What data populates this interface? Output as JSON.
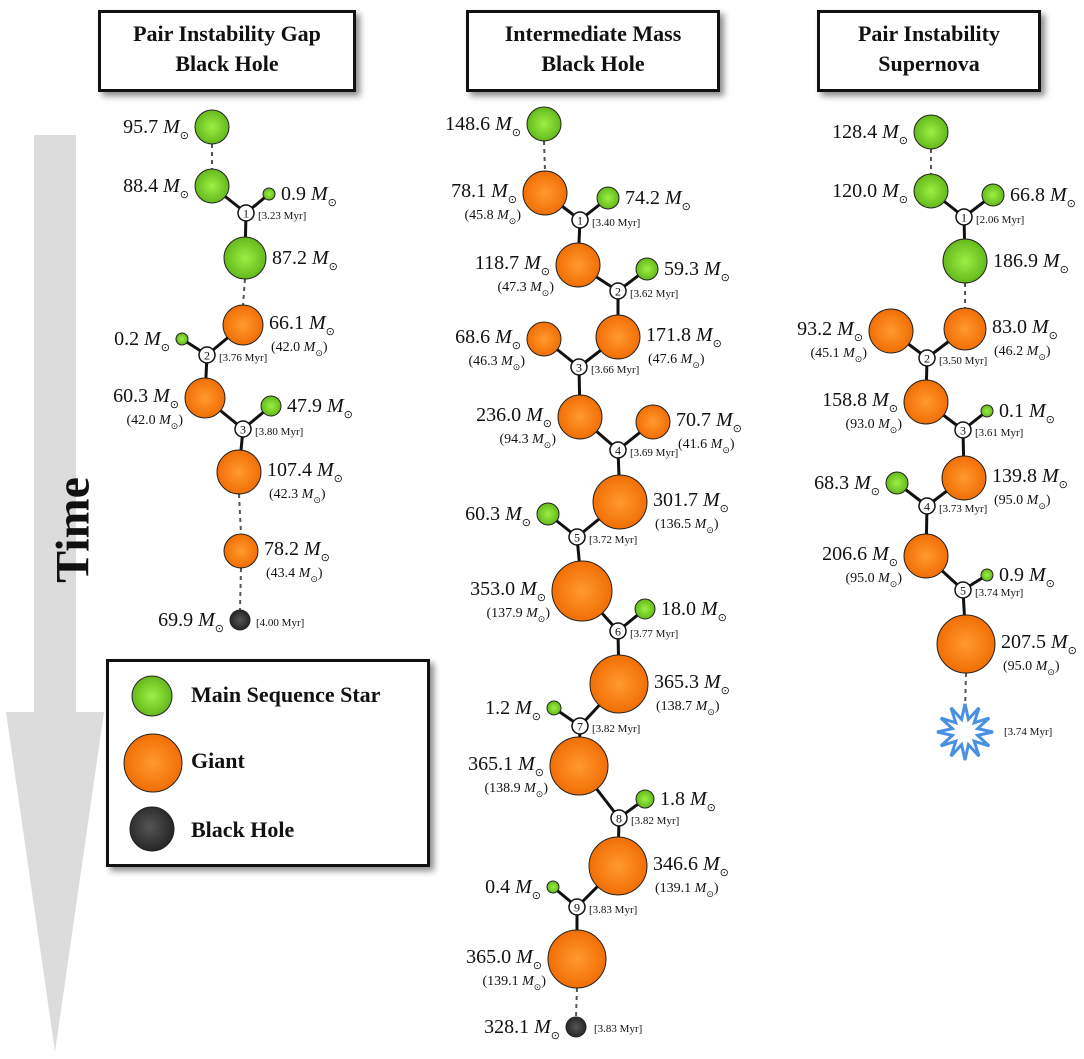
{
  "titles": {
    "pigbh": "Pair Instability Gap\nBlack Hole",
    "imbh": "Intermediate Mass\nBlack Hole",
    "pisn": "Pair Instability\nSupernova"
  },
  "time_label": "Time",
  "legend": [
    {
      "kind": "ms",
      "label": "Main Sequence Star"
    },
    {
      "kind": "giant",
      "label": "Giant"
    },
    {
      "kind": "bh",
      "label": "Black Hole"
    }
  ],
  "colors": {
    "main_sequence": "#7ED321",
    "giant": "#FF7A00",
    "black_hole": "#333333",
    "supernova": "#4A90E2",
    "arrow": "#DCDCDC"
  },
  "columns": [
    {
      "name": "Pair Instability Gap Black Hole",
      "nodes": [
        {
          "type": "ms",
          "mass": "95.7",
          "core": ""
        },
        {
          "type": "ms",
          "mass": "88.4",
          "core": ""
        },
        {
          "type": "ms",
          "mass": "0.9",
          "core": ""
        },
        {
          "type": "ms",
          "mass": "87.2",
          "core": ""
        },
        {
          "type": "giant",
          "mass": "66.1",
          "core": "42.0"
        },
        {
          "type": "ms",
          "mass": "0.2",
          "core": ""
        },
        {
          "type": "giant",
          "mass": "60.3",
          "core": "42.0"
        },
        {
          "type": "ms",
          "mass": "47.9",
          "core": ""
        },
        {
          "type": "giant",
          "mass": "107.4",
          "core": "42.3"
        },
        {
          "type": "giant",
          "mass": "78.2",
          "core": "43.4"
        },
        {
          "type": "bh",
          "mass": "69.9",
          "core": ""
        }
      ],
      "collisions": [
        {
          "n": "1",
          "t": "[3.23 Myr]"
        },
        {
          "n": "2",
          "t": "[3.76 Myr]"
        },
        {
          "n": "3",
          "t": "[3.80 Myr]"
        }
      ],
      "final_time": "[4.00 Myr]"
    },
    {
      "name": "Intermediate Mass Black Hole",
      "nodes": [
        {
          "type": "ms",
          "mass": "148.6",
          "core": ""
        },
        {
          "type": "giant",
          "mass": "78.1",
          "core": "45.8"
        },
        {
          "type": "ms",
          "mass": "74.2",
          "core": ""
        },
        {
          "type": "giant",
          "mass": "118.7",
          "core": "47.3"
        },
        {
          "type": "ms",
          "mass": "59.3",
          "core": ""
        },
        {
          "type": "giant",
          "mass": "68.6",
          "core": "46.3"
        },
        {
          "type": "giant",
          "mass": "171.8",
          "core": "47.6"
        },
        {
          "type": "giant",
          "mass": "236.0",
          "core": "94.3"
        },
        {
          "type": "giant",
          "mass": "70.7",
          "core": "41.6"
        },
        {
          "type": "ms",
          "mass": "60.3",
          "core": ""
        },
        {
          "type": "giant",
          "mass": "301.7",
          "core": "136.5"
        },
        {
          "type": "giant",
          "mass": "353.0",
          "core": "137.9"
        },
        {
          "type": "ms",
          "mass": "18.0",
          "core": ""
        },
        {
          "type": "giant",
          "mass": "365.3",
          "core": "138.7"
        },
        {
          "type": "ms",
          "mass": "1.2",
          "core": ""
        },
        {
          "type": "giant",
          "mass": "365.1",
          "core": "138.9"
        },
        {
          "type": "ms",
          "mass": "1.8",
          "core": ""
        },
        {
          "type": "giant",
          "mass": "346.6",
          "core": "139.1"
        },
        {
          "type": "ms",
          "mass": "0.4",
          "core": ""
        },
        {
          "type": "giant",
          "mass": "365.0",
          "core": "139.1"
        },
        {
          "type": "bh",
          "mass": "328.1",
          "core": ""
        }
      ],
      "collisions": [
        {
          "n": "1",
          "t": "[3.40 Myr]"
        },
        {
          "n": "2",
          "t": "[3.62 Myr]"
        },
        {
          "n": "3",
          "t": "[3.66 Myr]"
        },
        {
          "n": "4",
          "t": "[3.69 Myr]"
        },
        {
          "n": "5",
          "t": "[3.72 Myr]"
        },
        {
          "n": "6",
          "t": "[3.77 Myr]"
        },
        {
          "n": "7",
          "t": "[3.82 Myr]"
        },
        {
          "n": "8",
          "t": "[3.82 Myr]"
        },
        {
          "n": "9",
          "t": "[3.83 Myr]"
        }
      ],
      "final_time": "[3.83 Myr]"
    },
    {
      "name": "Pair Instability Supernova",
      "nodes": [
        {
          "type": "ms",
          "mass": "128.4",
          "core": ""
        },
        {
          "type": "ms",
          "mass": "120.0",
          "core": ""
        },
        {
          "type": "ms",
          "mass": "66.8",
          "core": ""
        },
        {
          "type": "ms",
          "mass": "186.9",
          "core": ""
        },
        {
          "type": "giant",
          "mass": "93.2",
          "core": "45.1"
        },
        {
          "type": "giant",
          "mass": "83.0",
          "core": "46.2"
        },
        {
          "type": "giant",
          "mass": "158.8",
          "core": "93.0"
        },
        {
          "type": "ms",
          "mass": "0.1",
          "core": ""
        },
        {
          "type": "ms",
          "mass": "68.3",
          "core": ""
        },
        {
          "type": "giant",
          "mass": "139.8",
          "core": "95.0"
        },
        {
          "type": "giant",
          "mass": "206.6",
          "core": "95.0"
        },
        {
          "type": "ms",
          "mass": "0.9",
          "core": ""
        },
        {
          "type": "giant",
          "mass": "207.5",
          "core": "95.0"
        }
      ],
      "collisions": [
        {
          "n": "1",
          "t": "[2.06 Myr]"
        },
        {
          "n": "2",
          "t": "[3.50 Myr]"
        },
        {
          "n": "3",
          "t": "[3.61 Myr]"
        },
        {
          "n": "4",
          "t": "[3.73 Myr]"
        },
        {
          "n": "5",
          "t": "[3.74 Myr]"
        }
      ],
      "final_time": "[3.74 Myr]"
    }
  ]
}
